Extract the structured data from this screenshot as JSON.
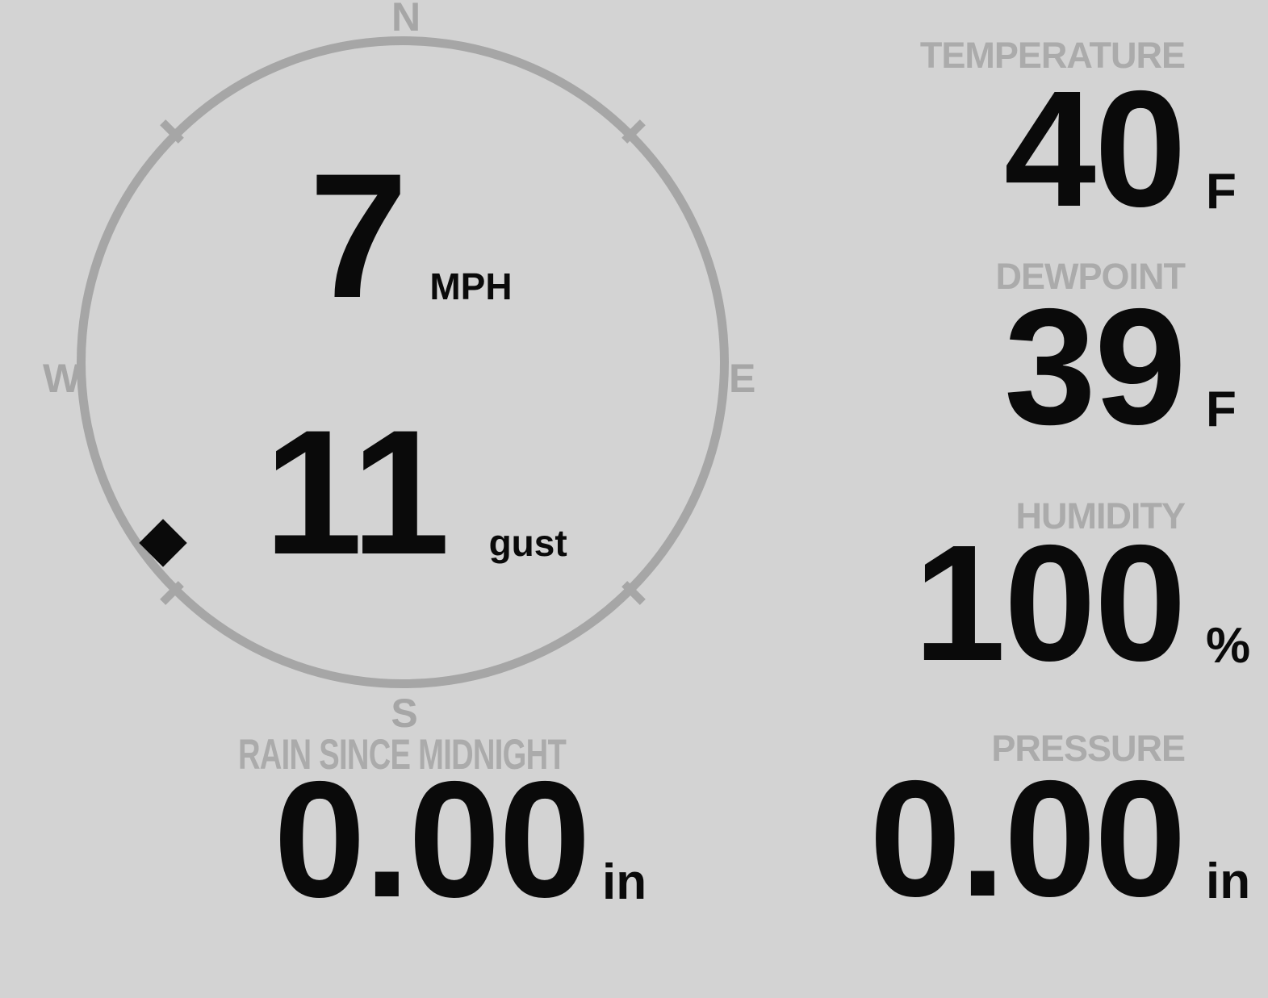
{
  "theme": {
    "background": "#d3d3d3",
    "muted_label_color": "#ababab",
    "compass_color": "#a6a6a6",
    "value_color": "#0a0a0a"
  },
  "compass": {
    "cardinals": {
      "north": "N",
      "east": "E",
      "south": "S",
      "west": "W"
    },
    "wind_speed": {
      "value": "7",
      "unit": "MPH"
    },
    "wind_gust": {
      "value": "11",
      "unit": "gust"
    },
    "direction_marker": {
      "shape": "diamond",
      "bearing_deg": 232
    }
  },
  "metrics": {
    "temperature": {
      "label": "TEMPERATURE",
      "value": "40",
      "unit": "F"
    },
    "dewpoint": {
      "label": "DEWPOINT",
      "value": "39",
      "unit": "F"
    },
    "humidity": {
      "label": "HUMIDITY",
      "value": "100",
      "unit": "%"
    },
    "rain": {
      "label": "RAIN SINCE MIDNIGHT",
      "value": "0.00",
      "unit": "in"
    },
    "pressure": {
      "label": "PRESSURE",
      "value": "0.00",
      "unit": "in"
    }
  }
}
